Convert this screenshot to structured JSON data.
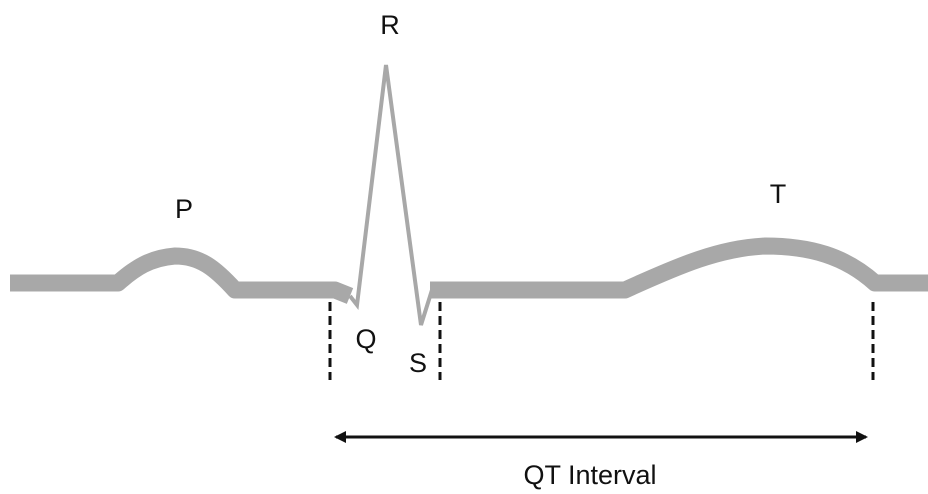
{
  "labels": {
    "p": "P",
    "q": "Q",
    "r": "R",
    "s": "S",
    "t": "T"
  },
  "interval": {
    "label": "QT Interval"
  }
}
